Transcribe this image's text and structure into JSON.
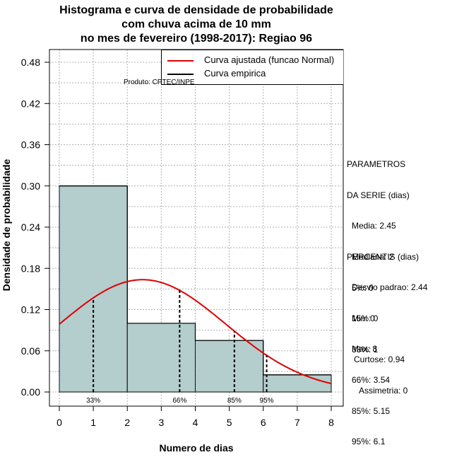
{
  "title": {
    "line1": "Histograma e curva de densidade de probabilidade",
    "line2": "com chuva acima de 10 mm",
    "line3": "no mes de fevereiro (1998-2017): Regiao 96"
  },
  "produto": "Produto: CPTEC/INPE",
  "legend": {
    "fitted": "Curva ajustada (funcao Normal)",
    "empirical": "Curva empirica"
  },
  "colors": {
    "bar_fill": "#b4cdcd",
    "fitted_curve": "#e00000",
    "empirical": "#000000",
    "grid": "#b0b0b0"
  },
  "parametros": {
    "header1": "PARAMETROS",
    "header2": "DA SERIE (dias)",
    "media": "Media: 2.45",
    "mediana": "Mediana: 2",
    "desvio": "Desvio padrao: 2.44",
    "min": "Min: 0",
    "max": "Max: 8"
  },
  "percentis": {
    "header": "PERCENTIS (dias)",
    "p5": "5%: 0",
    "p15": "15%: 0",
    "p33": "33%: 1",
    "p66": "66%: 3.54",
    "p85": "85%: 5.15",
    "p95": "95%: 6.1"
  },
  "moments": {
    "curtose": "Curtose: 0.94",
    "assimetria": "Assimetria: 0"
  },
  "chart_data": {
    "type": "bar",
    "title": "Histograma e curva de densidade de probabilidade com chuva acima de 10 mm no mes de fevereiro (1998-2017): Regiao 96",
    "xlabel": "Numero de dias",
    "ylabel": "Densidade de probabilidade",
    "xlim": [
      0,
      8
    ],
    "ylim": [
      0,
      0.48
    ],
    "x_ticks": [
      0,
      1,
      2,
      3,
      4,
      5,
      6,
      7,
      8
    ],
    "y_ticks": [
      0.0,
      0.06,
      0.12,
      0.18,
      0.24,
      0.3,
      0.36,
      0.42,
      0.48
    ],
    "y_tick_labels": [
      "0.00",
      "0.06",
      "0.12",
      "0.18",
      "0.24",
      "0.30",
      "0.36",
      "0.42",
      "0.48"
    ],
    "bins": [
      {
        "from": 0,
        "to": 2,
        "density": 0.3
      },
      {
        "from": 2,
        "to": 4,
        "density": 0.1
      },
      {
        "from": 4,
        "to": 6,
        "density": 0.075
      },
      {
        "from": 6,
        "to": 8,
        "density": 0.025
      }
    ],
    "fitted_normal": {
      "mean": 2.45,
      "sd": 2.44
    },
    "percentile_markers": [
      {
        "label": "33%",
        "x": 1.0
      },
      {
        "label": "66%",
        "x": 3.54
      },
      {
        "label": "85%",
        "x": 5.15
      },
      {
        "label": "95%",
        "x": 6.1
      }
    ],
    "grid": true,
    "legend_position": "top-right"
  }
}
